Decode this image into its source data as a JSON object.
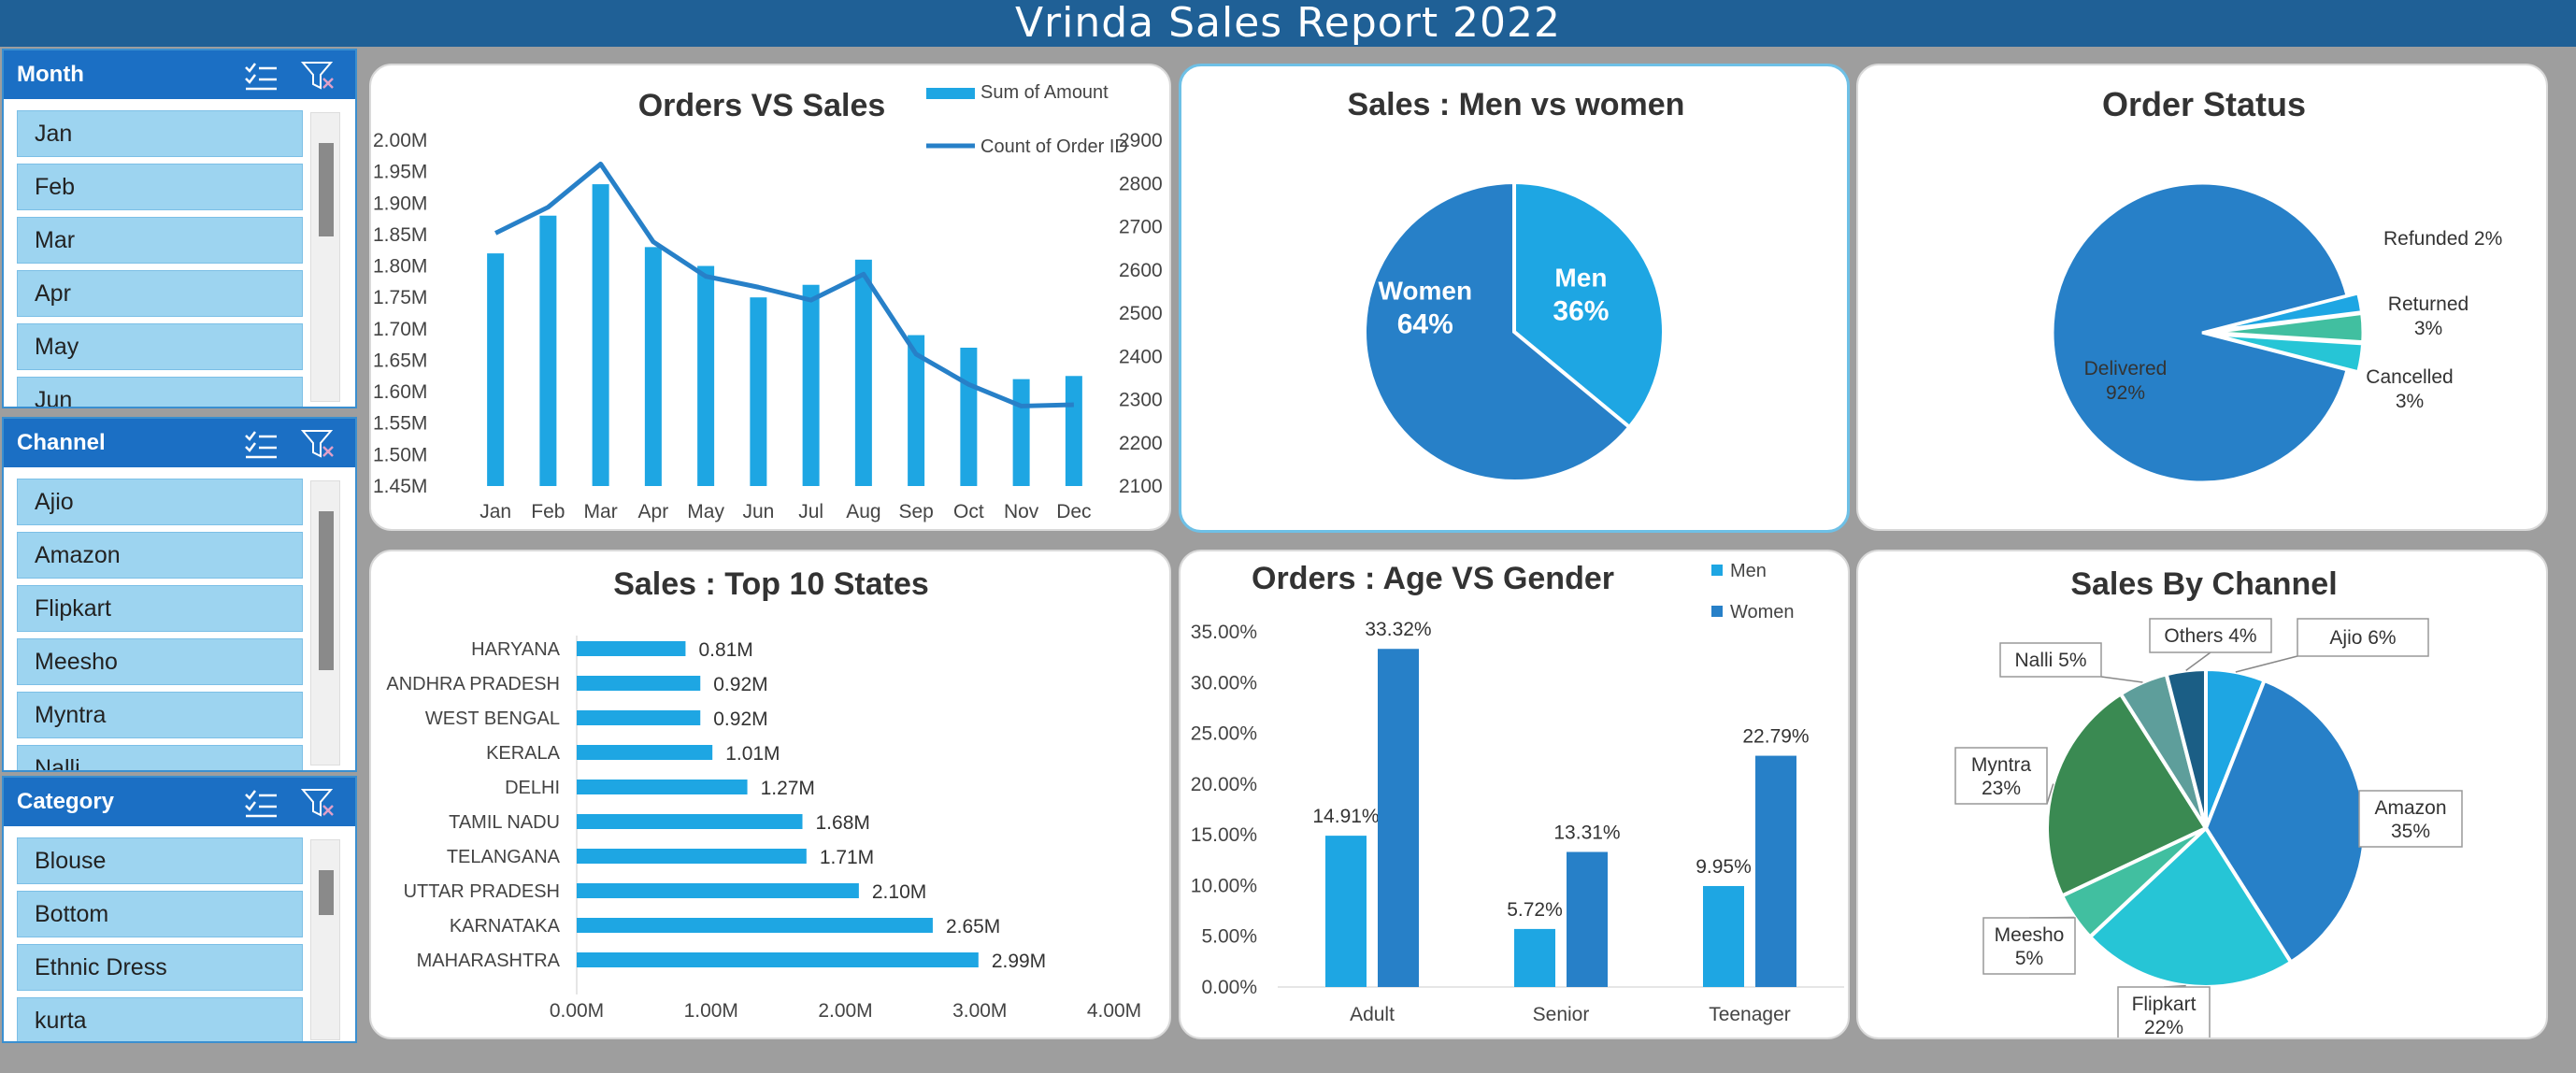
{
  "title": "Vrinda Sales Report 2022",
  "slicers": {
    "month": {
      "header": "Month",
      "items": [
        "Jan",
        "Feb",
        "Mar",
        "Apr",
        "May",
        "Jun"
      ]
    },
    "channel": {
      "header": "Channel",
      "items": [
        "Ajio",
        "Amazon",
        "Flipkart",
        "Meesho",
        "Myntra",
        "Nalli"
      ]
    },
    "category": {
      "header": "Category",
      "items": [
        "Blouse",
        "Bottom",
        "Ethnic Dress",
        "kurta"
      ]
    },
    "icons": [
      "multi-select-icon",
      "clear-filter-icon"
    ]
  },
  "colors": {
    "title_bar": "#1f6096",
    "slicer_head": "#1b6fc4",
    "slicer_item": "#9dd4f0",
    "bar_light": "#1ea6e3",
    "bar_dark": "#2780c8"
  },
  "chart_data": [
    {
      "type": "bar",
      "title": "Orders VS Sales",
      "categories": [
        "Jan",
        "Feb",
        "Mar",
        "Apr",
        "May",
        "Jun",
        "Jul",
        "Aug",
        "Sep",
        "Oct",
        "Nov",
        "Dec"
      ],
      "series": [
        {
          "name": "Sum of Amount",
          "kind": "bar",
          "axis": "left",
          "values": [
            1.82,
            1.88,
            1.93,
            1.83,
            1.8,
            1.75,
            1.77,
            1.81,
            1.69,
            1.67,
            1.62,
            1.625
          ]
        },
        {
          "name": "Count of Order ID",
          "kind": "line",
          "axis": "right",
          "values": [
            2685,
            2745,
            2845,
            2665,
            2585,
            2560,
            2530,
            2590,
            2405,
            2335,
            2285,
            2288
          ]
        }
      ],
      "y_left": {
        "min": 1.45,
        "max": 2.0,
        "ticks": [
          "2.00M",
          "1.95M",
          "1.90M",
          "1.85M",
          "1.80M",
          "1.75M",
          "1.70M",
          "1.65M",
          "1.60M",
          "1.55M",
          "1.50M",
          "1.45M"
        ]
      },
      "y_right": {
        "min": 2100,
        "max": 2900,
        "ticks": [
          "2900",
          "2800",
          "2700",
          "2600",
          "2500",
          "2400",
          "2300",
          "2200",
          "2100"
        ]
      },
      "legend": "top-right"
    },
    {
      "type": "pie",
      "title": "Sales : Men vs women",
      "slices": [
        {
          "label": "Men",
          "value": 36,
          "pct": "36%"
        },
        {
          "label": "Women",
          "value": 64,
          "pct": "64%"
        }
      ]
    },
    {
      "type": "pie",
      "title": "Order Status",
      "slices": [
        {
          "label": "Delivered",
          "value": 92,
          "pct": "92%"
        },
        {
          "label": "Refunded",
          "value": 2,
          "pct": "2%"
        },
        {
          "label": "Returned",
          "value": 3,
          "pct": "3%"
        },
        {
          "label": "Cancelled",
          "value": 3,
          "pct": "3%"
        }
      ]
    },
    {
      "type": "bar",
      "orientation": "horizontal",
      "title": "Sales : Top 10 States",
      "categories": [
        "HARYANA",
        "ANDHRA PRADESH",
        "WEST BENGAL",
        "KERALA",
        "DELHI",
        "TAMIL NADU",
        "TELANGANA",
        "UTTAR PRADESH",
        "KARNATAKA",
        "MAHARASHTRA"
      ],
      "values": [
        0.81,
        0.92,
        0.92,
        1.01,
        1.27,
        1.68,
        1.71,
        2.1,
        2.65,
        2.99
      ],
      "labels": [
        "0.81M",
        "0.92M",
        "0.92M",
        "1.01M",
        "1.27M",
        "1.68M",
        "1.71M",
        "2.10M",
        "2.65M",
        "2.99M"
      ],
      "xlim": [
        0,
        4
      ],
      "x_ticks": [
        "0.00M",
        "1.00M",
        "2.00M",
        "3.00M",
        "4.00M"
      ]
    },
    {
      "type": "bar",
      "title": "Orders : Age VS Gender",
      "categories": [
        "Adult",
        "Senior",
        "Teenager"
      ],
      "series": [
        {
          "name": "Men",
          "values": [
            14.91,
            5.72,
            9.95
          ],
          "labels": [
            "14.91%",
            "5.72%",
            "9.95%"
          ]
        },
        {
          "name": "Women",
          "values": [
            33.32,
            13.31,
            22.79
          ],
          "labels": [
            "33.32%",
            "13.31%",
            "22.79%"
          ]
        }
      ],
      "ylim": [
        0,
        35
      ],
      "y_ticks": [
        "35.00%",
        "30.00%",
        "25.00%",
        "20.00%",
        "15.00%",
        "10.00%",
        "5.00%",
        "0.00%"
      ],
      "legend": "top-right"
    },
    {
      "type": "pie",
      "title": "Sales By Channel",
      "slices": [
        {
          "label": "Ajio",
          "value": 6,
          "pct": "6%",
          "color": "#1ea6e3"
        },
        {
          "label": "Amazon",
          "value": 35,
          "pct": "35%",
          "color": "#2780c8"
        },
        {
          "label": "Flipkart",
          "value": 22,
          "pct": "22%",
          "color": "#26c5d6"
        },
        {
          "label": "Meesho",
          "value": 5,
          "pct": "5%",
          "color": "#41bfa0"
        },
        {
          "label": "Myntra",
          "value": 23,
          "pct": "23%",
          "color": "#3a8a52"
        },
        {
          "label": "Nalli",
          "value": 5,
          "pct": "5%",
          "color": "#5e9e9b"
        },
        {
          "label": "Others",
          "value": 4,
          "pct": "4%",
          "color": "#1b5e85"
        }
      ]
    }
  ]
}
